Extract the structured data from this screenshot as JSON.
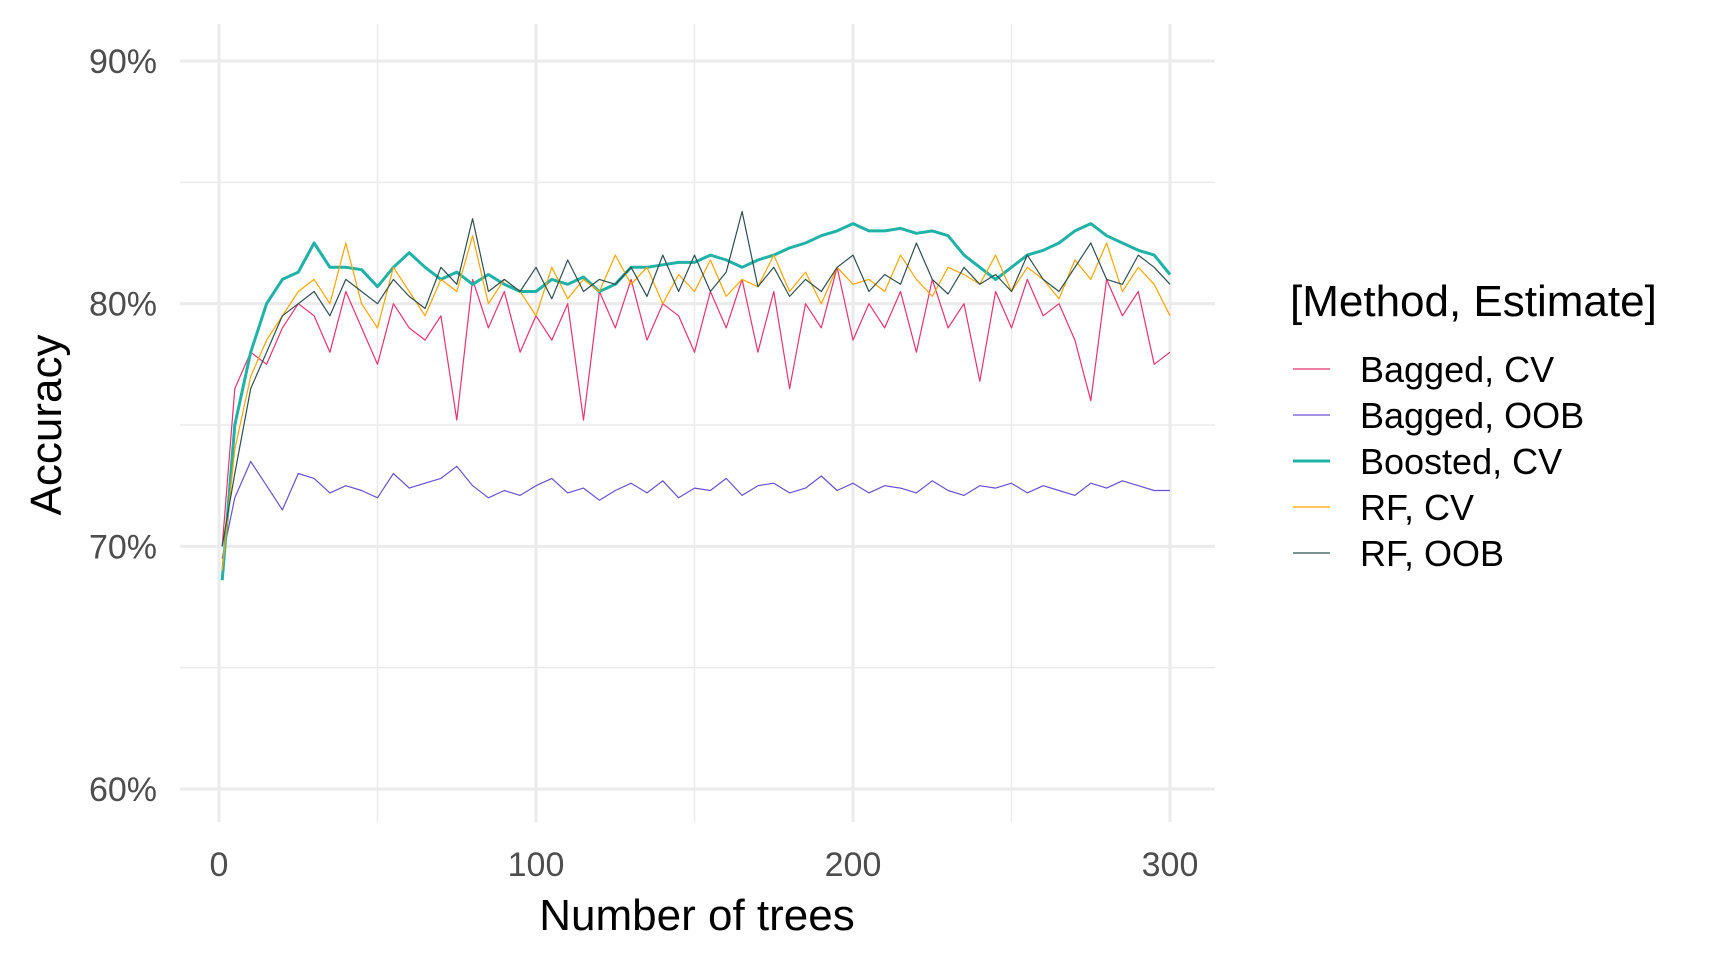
{
  "chart_data": {
    "type": "line",
    "title": "",
    "xlabel": "Number of trees",
    "ylabel": "Accuracy",
    "xlim": [
      0,
      300
    ],
    "ylim": [
      60,
      90
    ],
    "x_ticks": [
      0,
      100,
      200,
      300
    ],
    "x_tick_labels": [
      "0",
      "100",
      "200",
      "300"
    ],
    "y_ticks": [
      60,
      70,
      80,
      90
    ],
    "y_tick_labels": [
      "60%",
      "70%",
      "80%",
      "90%"
    ],
    "grid": true,
    "legend": {
      "title": "[Method, Estimate]",
      "placement": "right"
    },
    "x": [
      1,
      5,
      10,
      15,
      20,
      25,
      30,
      35,
      40,
      45,
      50,
      55,
      60,
      65,
      70,
      75,
      80,
      85,
      90,
      95,
      100,
      105,
      110,
      115,
      120,
      125,
      130,
      135,
      140,
      145,
      150,
      155,
      160,
      165,
      170,
      175,
      180,
      185,
      190,
      195,
      200,
      205,
      210,
      215,
      220,
      225,
      230,
      235,
      240,
      245,
      250,
      255,
      260,
      265,
      270,
      275,
      280,
      285,
      290,
      295,
      300
    ],
    "series": [
      {
        "name": "Bagged, CV",
        "color": "#E7336F",
        "width": 1.2,
        "values": [
          70,
          76.5,
          78,
          77.5,
          79,
          80,
          79.5,
          78,
          80.5,
          79,
          77.5,
          80,
          79,
          78.5,
          79.5,
          75.2,
          81,
          79,
          80.5,
          78,
          79.5,
          78.5,
          80,
          75.2,
          80.5,
          79,
          81,
          78.5,
          80,
          79.5,
          78,
          80.5,
          79,
          81,
          78,
          80.5,
          76.5,
          80,
          79,
          81.5,
          78.5,
          80,
          79,
          80.5,
          78,
          81,
          79,
          80,
          76.8,
          80.5,
          79,
          81,
          79.5,
          80,
          78.5,
          76,
          81,
          79.5,
          80.5,
          77.5,
          78
        ]
      },
      {
        "name": "Bagged, OOB",
        "color": "#6A51CF",
        "width": 1.2,
        "values": [
          69.5,
          72,
          73.5,
          72.5,
          71.5,
          73,
          72.8,
          72.2,
          72.5,
          72.3,
          72,
          73,
          72.4,
          72.6,
          72.8,
          73.3,
          72.5,
          72,
          72.3,
          72.1,
          72.5,
          72.8,
          72.2,
          72.4,
          71.9,
          72.3,
          72.6,
          72.2,
          72.7,
          72,
          72.4,
          72.3,
          72.8,
          72.1,
          72.5,
          72.6,
          72.2,
          72.4,
          72.9,
          72.3,
          72.6,
          72.2,
          72.5,
          72.4,
          72.2,
          72.7,
          72.3,
          72.1,
          72.5,
          72.4,
          72.6,
          72.2,
          72.5,
          72.3,
          72.1,
          72.6,
          72.4,
          72.7,
          72.5,
          72.3,
          72.3
        ]
      },
      {
        "name": "Boosted, CV",
        "color": "#20B2A6",
        "width": 3,
        "values": [
          68.6,
          75,
          78,
          80,
          81,
          81.3,
          82.5,
          81.5,
          81.5,
          81.4,
          80.7,
          81.5,
          82.1,
          81.5,
          81,
          81.3,
          80.8,
          81.2,
          80.8,
          80.5,
          80.5,
          81,
          80.8,
          81.1,
          80.5,
          80.8,
          81.5,
          81.5,
          81.6,
          81.7,
          81.7,
          82,
          81.8,
          81.5,
          81.8,
          82,
          82.3,
          82.5,
          82.8,
          83,
          83.3,
          83,
          83,
          83.1,
          82.9,
          83,
          82.8,
          82,
          81.5,
          81,
          81.5,
          82,
          82.2,
          82.5,
          83,
          83.3,
          82.8,
          82.5,
          82.2,
          82,
          81.2
        ]
      },
      {
        "name": "RF, CV",
        "color": "#FFA500",
        "width": 1.2,
        "values": [
          69,
          74,
          77,
          78.5,
          79.5,
          80.5,
          81,
          80,
          82.5,
          80,
          79,
          81.5,
          80.5,
          79.5,
          81,
          80.5,
          82.8,
          80,
          81,
          80.5,
          79.5,
          81.5,
          80.2,
          81,
          80.5,
          82,
          80.8,
          81.5,
          80,
          81.2,
          80.5,
          81.8,
          80.3,
          81,
          80.7,
          82,
          80.5,
          81.3,
          80,
          81.5,
          80.8,
          81,
          80.5,
          82,
          81,
          80.3,
          81.5,
          81.2,
          80.8,
          82,
          80.5,
          81.5,
          81,
          80.2,
          81.8,
          81,
          82.5,
          80.5,
          81.5,
          80.8,
          79.5
        ]
      },
      {
        "name": "RF, OOB",
        "color": "#2F4F4F",
        "width": 1.2,
        "values": [
          70,
          73,
          76.5,
          78,
          79.5,
          80,
          80.5,
          79.5,
          81,
          80.5,
          80,
          81,
          80.3,
          79.8,
          81.5,
          80.8,
          83.5,
          80.5,
          81,
          80.5,
          81.5,
          80.2,
          81.8,
          80.5,
          81,
          80.8,
          81.5,
          80.3,
          82,
          80.5,
          82,
          80.5,
          81.3,
          83.8,
          80.7,
          81.5,
          80.3,
          81,
          80.5,
          81.5,
          82,
          80.5,
          81.2,
          80.8,
          82.5,
          81,
          80.4,
          81.5,
          80.8,
          81.2,
          80.5,
          82,
          81,
          80.5,
          81.5,
          82.5,
          81,
          80.8,
          82,
          81.5,
          80.8
        ]
      }
    ]
  }
}
